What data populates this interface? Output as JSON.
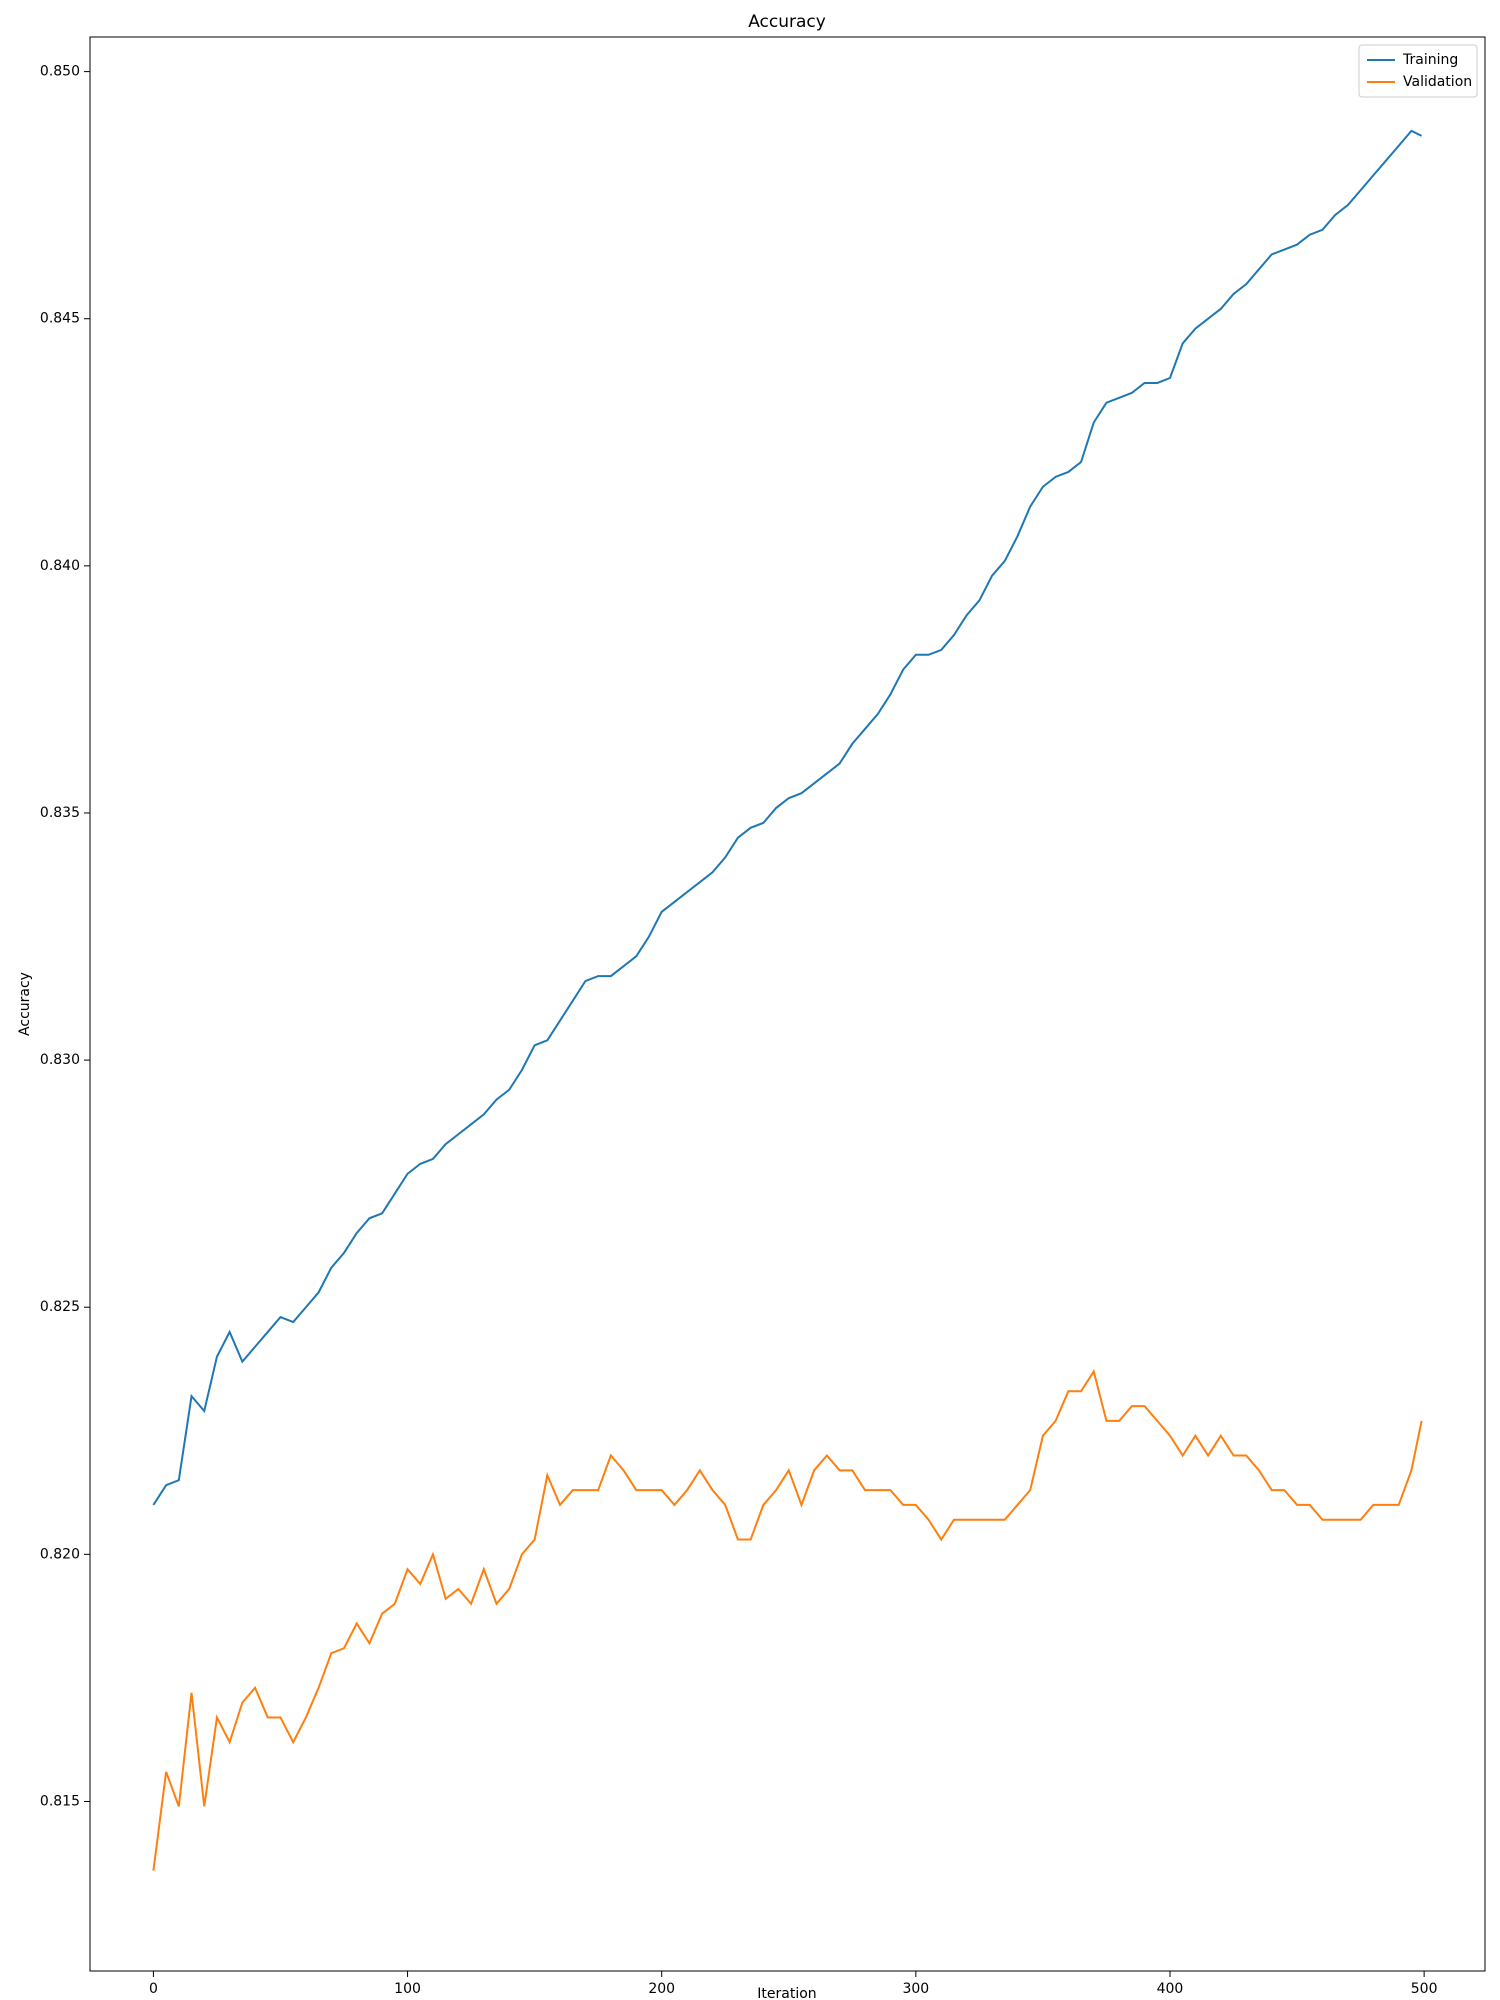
{
  "chart_data": {
    "type": "line",
    "title": "Accuracy",
    "x_label": "Iteration",
    "y_label": "Accuracy",
    "x": [
      0,
      5,
      10,
      15,
      20,
      25,
      30,
      35,
      40,
      45,
      50,
      55,
      60,
      65,
      70,
      75,
      80,
      85,
      90,
      95,
      100,
      105,
      110,
      115,
      120,
      125,
      130,
      135,
      140,
      145,
      150,
      155,
      160,
      165,
      170,
      175,
      180,
      185,
      190,
      195,
      200,
      205,
      210,
      215,
      220,
      225,
      230,
      235,
      240,
      245,
      250,
      255,
      260,
      265,
      270,
      275,
      280,
      285,
      290,
      295,
      300,
      305,
      310,
      315,
      320,
      325,
      330,
      335,
      340,
      345,
      350,
      355,
      360,
      365,
      370,
      375,
      380,
      385,
      390,
      395,
      400,
      405,
      410,
      415,
      420,
      425,
      430,
      435,
      440,
      445,
      450,
      455,
      460,
      465,
      470,
      475,
      480,
      485,
      490,
      495,
      499
    ],
    "series": [
      {
        "name": "Training",
        "color": "#1f77b4",
        "values": [
          0.821,
          0.8214,
          0.8215,
          0.8232,
          0.8229,
          0.824,
          0.8245,
          0.8239,
          0.8242,
          0.8245,
          0.8248,
          0.8247,
          0.825,
          0.8253,
          0.8258,
          0.8261,
          0.8265,
          0.8268,
          0.8269,
          0.8273,
          0.8277,
          0.8279,
          0.828,
          0.8283,
          0.8285,
          0.8287,
          0.8289,
          0.8292,
          0.8294,
          0.8298,
          0.8303,
          0.8304,
          0.8308,
          0.8312,
          0.8316,
          0.8317,
          0.8317,
          0.8319,
          0.8321,
          0.8325,
          0.833,
          0.8332,
          0.8334,
          0.8336,
          0.8338,
          0.8341,
          0.8345,
          0.8347,
          0.8348,
          0.8351,
          0.8353,
          0.8354,
          0.8356,
          0.8358,
          0.836,
          0.8364,
          0.8367,
          0.837,
          0.8374,
          0.8379,
          0.8382,
          0.8382,
          0.8383,
          0.8386,
          0.839,
          0.8393,
          0.8398,
          0.8401,
          0.8406,
          0.8412,
          0.8416,
          0.8418,
          0.8419,
          0.8421,
          0.8429,
          0.8433,
          0.8434,
          0.8435,
          0.8437,
          0.8437,
          0.8438,
          0.8445,
          0.8448,
          0.845,
          0.8452,
          0.8455,
          0.8457,
          0.846,
          0.8463,
          0.8464,
          0.8465,
          0.8467,
          0.8468,
          0.8471,
          0.8473,
          0.8476,
          0.8479,
          0.8482,
          0.8485,
          0.8488,
          0.8487
        ]
      },
      {
        "name": "Validation",
        "color": "#ff7f0e",
        "values": [
          0.8136,
          0.8156,
          0.8149,
          0.8172,
          0.8149,
          0.8167,
          0.8162,
          0.817,
          0.8173,
          0.8167,
          0.8167,
          0.8162,
          0.8167,
          0.8173,
          0.818,
          0.8181,
          0.8186,
          0.8182,
          0.8188,
          0.819,
          0.8197,
          0.8194,
          0.82,
          0.8191,
          0.8193,
          0.819,
          0.8197,
          0.819,
          0.8193,
          0.82,
          0.8203,
          0.8216,
          0.821,
          0.8213,
          0.8213,
          0.8213,
          0.822,
          0.8217,
          0.8213,
          0.8213,
          0.8213,
          0.821,
          0.8213,
          0.8217,
          0.8213,
          0.821,
          0.8203,
          0.8203,
          0.821,
          0.8213,
          0.8217,
          0.821,
          0.8217,
          0.822,
          0.8217,
          0.8217,
          0.8213,
          0.8213,
          0.8213,
          0.821,
          0.821,
          0.8207,
          0.8203,
          0.8207,
          0.8207,
          0.8207,
          0.8207,
          0.8207,
          0.821,
          0.8213,
          0.8224,
          0.8227,
          0.8233,
          0.8233,
          0.8237,
          0.8227,
          0.8227,
          0.823,
          0.823,
          0.8227,
          0.8224,
          0.822,
          0.8224,
          0.822,
          0.8224,
          0.822,
          0.822,
          0.8217,
          0.8213,
          0.8213,
          0.821,
          0.821,
          0.8207,
          0.8207,
          0.8207,
          0.8207,
          0.821,
          0.821,
          0.821,
          0.8217,
          0.8227
        ]
      }
    ],
    "xlim": [
      -24.95,
      523.95
    ],
    "ylim": [
      0.81157,
      0.8507
    ],
    "xticks": [
      0,
      100,
      200,
      300,
      400,
      500
    ],
    "yticks": [
      0.815,
      {
        "value": 0.82,
        "label": "0.820"
      },
      0.825,
      {
        "value": 0.83,
        "label": "0.830"
      },
      0.835,
      {
        "value": 0.84,
        "label": "0.840"
      },
      0.845,
      {
        "value": 0.85,
        "label": "0.850"
      }
    ],
    "legend": "upper right"
  }
}
